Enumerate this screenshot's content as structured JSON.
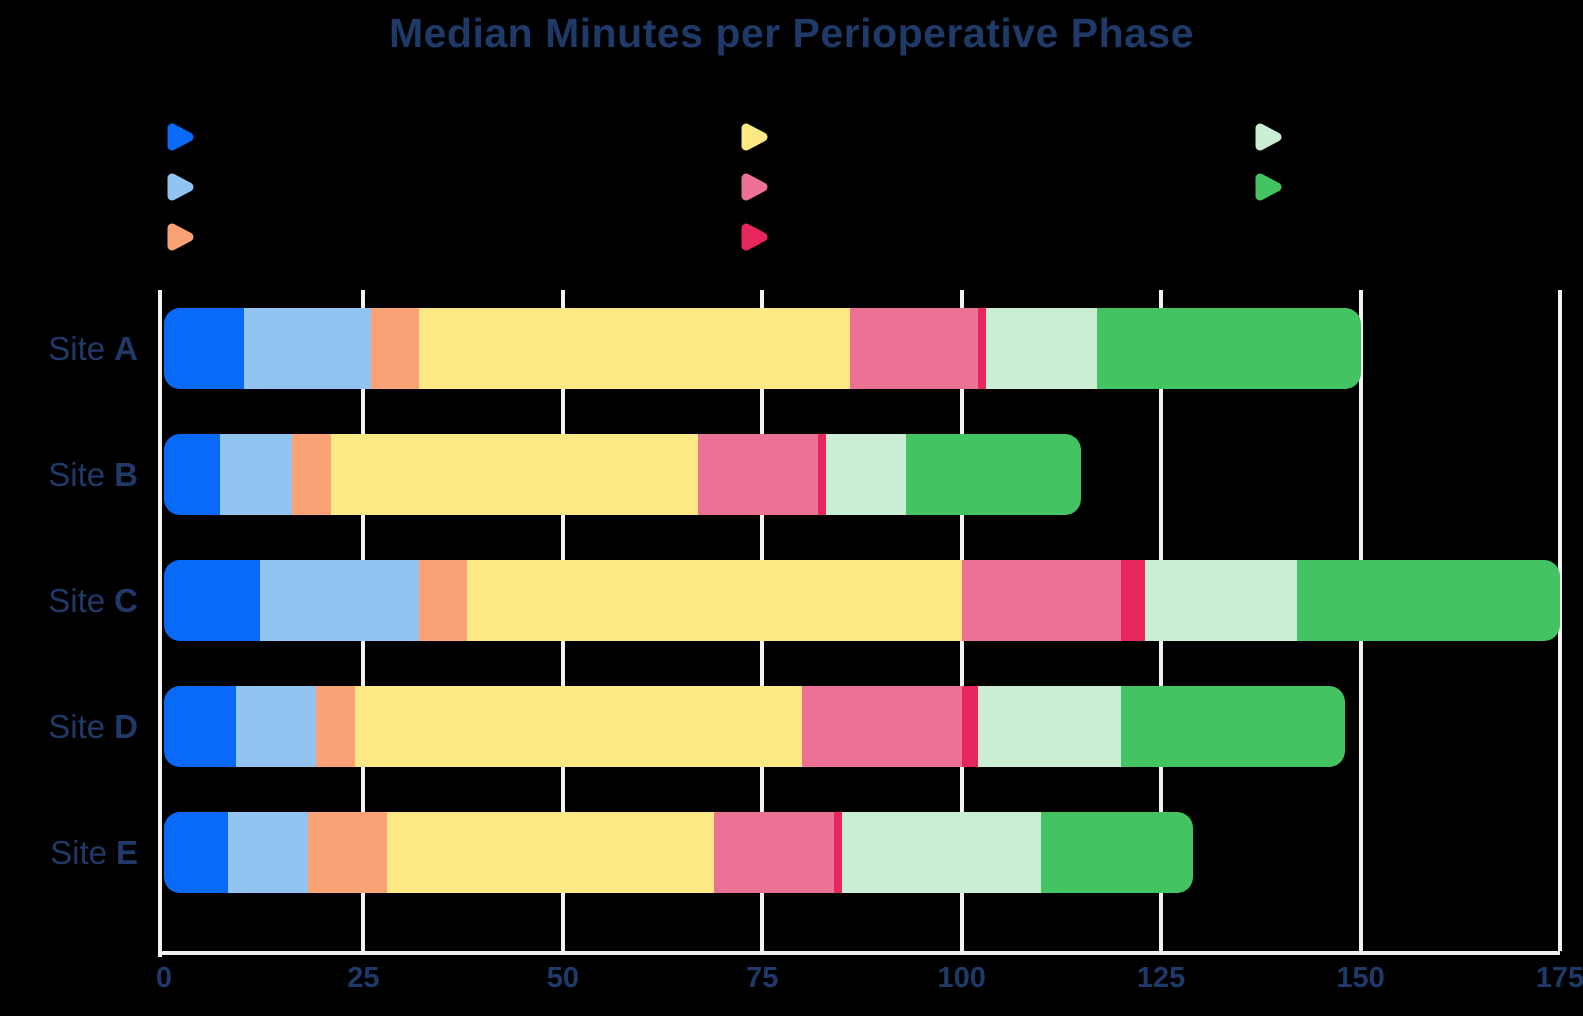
{
  "title": "Median Minutes per Perioperative Phase",
  "colors": {
    "background": "#000000",
    "text_navy": "#1f3a68",
    "gridline": "#f2f2f2"
  },
  "legend": {
    "labels_visible": false,
    "columns": [
      [
        "blue",
        "lightblue",
        "orange"
      ],
      [
        "yellow",
        "pink",
        "crimson"
      ],
      [
        "lightgreen",
        "green"
      ]
    ]
  },
  "chart_data": {
    "type": "stacked_bar_horizontal",
    "title": "Median Minutes per Perioperative Phase",
    "xlabel": "",
    "ylabel": "",
    "xlim": [
      0,
      175
    ],
    "x_ticks": [
      0,
      25,
      50,
      75,
      100,
      125,
      150,
      175
    ],
    "grid": true,
    "category_prefix": "Site",
    "category_letters": [
      "A",
      "B",
      "C",
      "D",
      "E"
    ],
    "categories": [
      "Site A",
      "Site B",
      "Site C",
      "Site D",
      "Site E"
    ],
    "series": [
      {
        "name": "",
        "color_name": "blue",
        "color": "#096af7",
        "values": [
          10,
          7,
          12,
          9,
          8
        ]
      },
      {
        "name": "",
        "color_name": "lightblue",
        "color": "#92c4f2",
        "values": [
          16,
          9,
          20,
          10,
          10
        ]
      },
      {
        "name": "",
        "color_name": "orange",
        "color": "#fba176",
        "values": [
          6,
          5,
          6,
          5,
          10
        ]
      },
      {
        "name": "",
        "color_name": "yellow",
        "color": "#fce985",
        "values": [
          54,
          46,
          62,
          56,
          41
        ]
      },
      {
        "name": "",
        "color_name": "pink",
        "color": "#ec7295",
        "values": [
          16,
          15,
          20,
          20,
          15
        ]
      },
      {
        "name": "",
        "color_name": "crimson",
        "color": "#e6265c",
        "values": [
          1,
          1,
          3,
          2,
          1
        ]
      },
      {
        "name": "",
        "color_name": "lightgreen",
        "color": "#c9eed3",
        "values": [
          14,
          10,
          19,
          18,
          25
        ]
      },
      {
        "name": "",
        "color_name": "green",
        "color": "#44c363",
        "values": [
          33,
          22,
          33,
          28,
          19
        ]
      }
    ],
    "totals": [
      150,
      115,
      175,
      148,
      129
    ],
    "legend_labels_visible": false
  }
}
